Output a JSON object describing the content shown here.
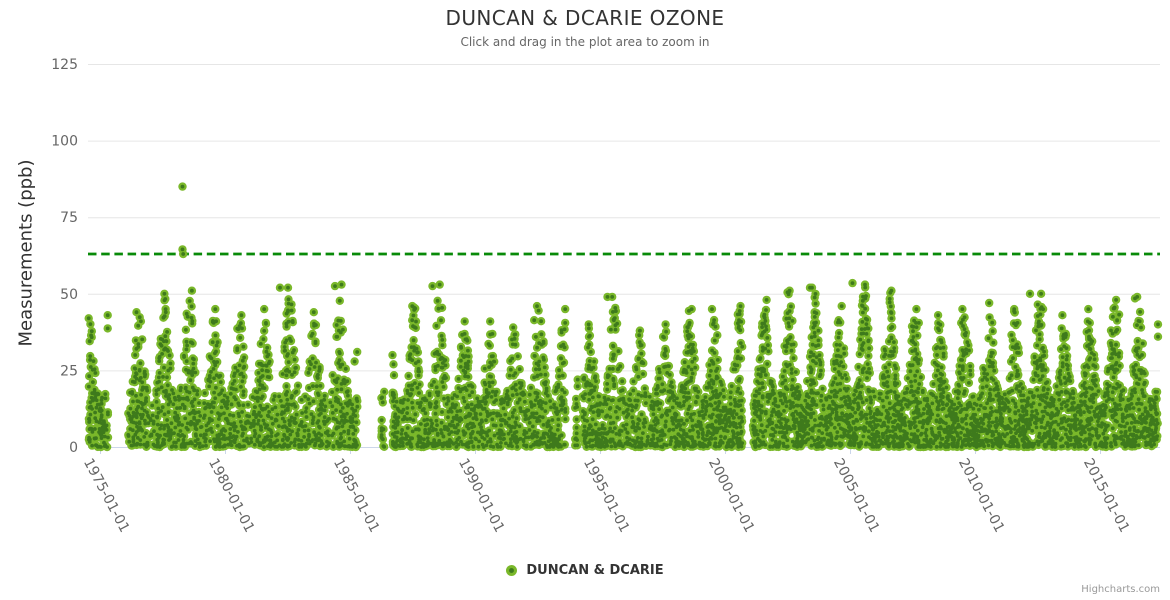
{
  "header": {
    "title": "DUNCAN & DCARIE OZONE",
    "subtitle": "Click and drag in the plot area to zoom in"
  },
  "legend": {
    "label": "DUNCAN & DCARIE"
  },
  "credits": {
    "label": "Highcharts.com"
  },
  "chart_data": {
    "type": "scatter",
    "title": "DUNCAN & DCARIE OZONE",
    "subtitle": "Click and drag in the plot area to zoom in",
    "ylabel": "Measurements (ppb)",
    "xlabel": "",
    "ylim": [
      0,
      125
    ],
    "y_ticks": [
      0,
      25,
      50,
      75,
      100,
      125
    ],
    "x_ticks": [
      {
        "year": 1975,
        "label": "1975-01-01"
      },
      {
        "year": 1980,
        "label": "1980-01-01"
      },
      {
        "year": 1985,
        "label": "1985-01-01"
      },
      {
        "year": 1990,
        "label": "1990-01-01"
      },
      {
        "year": 1995,
        "label": "1995-01-01"
      },
      {
        "year": 2000,
        "label": "2000-01-01"
      },
      {
        "year": 2005,
        "label": "2005-01-01"
      },
      {
        "year": 2010,
        "label": "2010-01-01"
      },
      {
        "year": 2015,
        "label": "2015-01-01"
      }
    ],
    "x_range_years": [
      1974.5,
      2017.4
    ],
    "grid": true,
    "legend_position": "bottom-center",
    "threshold_line": {
      "value": 63,
      "color": "#088a08",
      "dash_pattern": "8.5,4.7",
      "width": 2.8
    },
    "colors": {
      "series": "#7ab82a",
      "marker_center": "#3e7a1c",
      "grid": "#e6e6e6",
      "axis_line": "#ccd6eb",
      "tick_text": "#666666",
      "title_text": "#333333",
      "subtitle_text": "#666666",
      "threshold": "#088a08",
      "background": "#ffffff"
    },
    "series": [
      {
        "name": "DUNCAN & DCARIE",
        "color": "#7ab82a",
        "marker_center_color": "#3e7a1c",
        "marker_radius": 4.2,
        "seed": 1978,
        "day_slots": 40,
        "winter_base": 16,
        "peak_month_fraction": 0.58,
        "season_width": 0.23,
        "yearly_profile": [
          {
            "year": 1974,
            "max": 42,
            "n": 100,
            "segments": [
              [
                0.55,
                1.0
              ]
            ],
            "wd": 0.5
          },
          {
            "year": 1975,
            "max": 43,
            "n": 70,
            "segments": [
              [
                0.0,
                0.32
              ]
            ],
            "wd": 0.6
          },
          {
            "year": 1976,
            "max": 44,
            "n": 140,
            "segments": [
              [
                0.12,
                1.0
              ]
            ],
            "wd": 0.5
          },
          {
            "year": 1977,
            "max": 50,
            "n": 170,
            "segments": [
              [
                0,
                1
              ]
            ],
            "wd": 0.5
          },
          {
            "year": 1978,
            "max": 51,
            "n": 170,
            "segments": [
              [
                0,
                1
              ]
            ],
            "wd": 0.5
          },
          {
            "year": 1979,
            "max": 45,
            "n": 160,
            "segments": [
              [
                0,
                1
              ]
            ],
            "wd": 0.5
          },
          {
            "year": 1980,
            "max": 43,
            "n": 150,
            "segments": [
              [
                0,
                1
              ]
            ],
            "wd": 0.5
          },
          {
            "year": 1981,
            "max": 45,
            "n": 160,
            "segments": [
              [
                0,
                1
              ]
            ],
            "wd": 0.5
          },
          {
            "year": 1982,
            "max": 52,
            "n": 170,
            "segments": [
              [
                0,
                1
              ]
            ],
            "wd": 0.5
          },
          {
            "year": 1983,
            "max": 44,
            "n": 150,
            "segments": [
              [
                0,
                1
              ]
            ],
            "wd": 0.5
          },
          {
            "year": 1984,
            "max": 53,
            "n": 160,
            "segments": [
              [
                0,
                1
              ]
            ],
            "wd": 0.5
          },
          {
            "year": 1985,
            "max": 31,
            "n": 45,
            "segments": [
              [
                0,
                0.3
              ]
            ],
            "wd": 0.7
          },
          {
            "year": 1986,
            "max": 18,
            "n": 12,
            "segments": [
              [
                0.25,
                0.38
              ]
            ],
            "wd": 1.0
          },
          {
            "year": 1986,
            "max": 30,
            "n": 40,
            "segments": [
              [
                0.7,
                1.0
              ]
            ],
            "wd": 0.8
          },
          {
            "year": 1987,
            "max": 46,
            "n": 170,
            "segments": [
              [
                0,
                1
              ]
            ],
            "wd": 0.5
          },
          {
            "year": 1988,
            "max": 53,
            "n": 170,
            "segments": [
              [
                0,
                1
              ]
            ],
            "wd": 0.5
          },
          {
            "year": 1989,
            "max": 41,
            "n": 160,
            "segments": [
              [
                0,
                1
              ]
            ],
            "wd": 0.5
          },
          {
            "year": 1990,
            "max": 41,
            "n": 150,
            "segments": [
              [
                0,
                1
              ]
            ],
            "wd": 0.5
          },
          {
            "year": 1991,
            "max": 39,
            "n": 150,
            "segments": [
              [
                0,
                1
              ]
            ],
            "wd": 0.55
          },
          {
            "year": 1992,
            "max": 46,
            "n": 160,
            "segments": [
              [
                0,
                1
              ]
            ],
            "wd": 0.55
          },
          {
            "year": 1993,
            "max": 45,
            "n": 110,
            "segments": [
              [
                0,
                0.62
              ]
            ],
            "wd": 0.6
          },
          {
            "year": 1994,
            "max": 22,
            "n": 12,
            "segments": [
              [
                0.0,
                0.12
              ]
            ],
            "wd": 1.0
          },
          {
            "year": 1994,
            "max": 40,
            "n": 120,
            "segments": [
              [
                0.3,
                1.0
              ]
            ],
            "wd": 0.6
          },
          {
            "year": 1995,
            "max": 49,
            "n": 160,
            "segments": [
              [
                0,
                1
              ]
            ],
            "wd": 0.55
          },
          {
            "year": 1996,
            "max": 38,
            "n": 150,
            "segments": [
              [
                0,
                1
              ]
            ],
            "wd": 0.55
          },
          {
            "year": 1997,
            "max": 40,
            "n": 150,
            "segments": [
              [
                0,
                1
              ]
            ],
            "wd": 0.6
          },
          {
            "year": 1998,
            "max": 45,
            "n": 180,
            "segments": [
              [
                0,
                1
              ]
            ],
            "wd": 0.7
          },
          {
            "year": 1999,
            "max": 45,
            "n": 180,
            "segments": [
              [
                0,
                1
              ]
            ],
            "wd": 0.7
          },
          {
            "year": 2000,
            "max": 46,
            "n": 130,
            "segments": [
              [
                0,
                0.7
              ]
            ],
            "wd": 0.75
          },
          {
            "year": 2001,
            "max": 48,
            "n": 160,
            "segments": [
              [
                0.12,
                1
              ]
            ],
            "wd": 0.75
          },
          {
            "year": 2002,
            "max": 51,
            "n": 190,
            "segments": [
              [
                0,
                1
              ]
            ],
            "wd": 0.8
          },
          {
            "year": 2003,
            "max": 52,
            "n": 190,
            "segments": [
              [
                0,
                1
              ]
            ],
            "wd": 0.8
          },
          {
            "year": 2004,
            "max": 46,
            "n": 190,
            "segments": [
              [
                0,
                1
              ]
            ],
            "wd": 0.8
          },
          {
            "year": 2005,
            "max": 53,
            "n": 190,
            "segments": [
              [
                0,
                1
              ]
            ],
            "wd": 0.8
          },
          {
            "year": 2006,
            "max": 51,
            "n": 190,
            "segments": [
              [
                0,
                1
              ]
            ],
            "wd": 0.8
          },
          {
            "year": 2007,
            "max": 45,
            "n": 190,
            "segments": [
              [
                0,
                1
              ]
            ],
            "wd": 0.8
          },
          {
            "year": 2008,
            "max": 43,
            "n": 190,
            "segments": [
              [
                0,
                1
              ]
            ],
            "wd": 0.8
          },
          {
            "year": 2009,
            "max": 45,
            "n": 190,
            "segments": [
              [
                0,
                1
              ]
            ],
            "wd": 0.8
          },
          {
            "year": 2010,
            "max": 47,
            "n": 190,
            "segments": [
              [
                0,
                1
              ]
            ],
            "wd": 0.8
          },
          {
            "year": 2011,
            "max": 45,
            "n": 190,
            "segments": [
              [
                0,
                1
              ]
            ],
            "wd": 0.8
          },
          {
            "year": 2012,
            "max": 50,
            "n": 190,
            "segments": [
              [
                0,
                1
              ]
            ],
            "wd": 0.8
          },
          {
            "year": 2013,
            "max": 43,
            "n": 190,
            "segments": [
              [
                0,
                1
              ]
            ],
            "wd": 0.8
          },
          {
            "year": 2014,
            "max": 45,
            "n": 190,
            "segments": [
              [
                0,
                1
              ]
            ],
            "wd": 0.8
          },
          {
            "year": 2015,
            "max": 48,
            "n": 190,
            "segments": [
              [
                0,
                1
              ]
            ],
            "wd": 0.8
          },
          {
            "year": 2016,
            "max": 49,
            "n": 190,
            "segments": [
              [
                0,
                1
              ]
            ],
            "wd": 0.8
          },
          {
            "year": 2017,
            "max": 40,
            "n": 60,
            "segments": [
              [
                0,
                0.33
              ]
            ],
            "wd": 0.9
          }
        ],
        "notable_points": [
          {
            "x": 1978.3,
            "y": 85
          },
          {
            "x": 1978.3,
            "y": 64.5
          },
          {
            "x": 1978.33,
            "y": 63
          },
          {
            "x": 1982.2,
            "y": 52
          },
          {
            "x": 1984.4,
            "y": 52.5
          },
          {
            "x": 1988.3,
            "y": 52.5
          },
          {
            "x": 1995.3,
            "y": 49
          },
          {
            "x": 2002.5,
            "y": 50.5
          },
          {
            "x": 2003.4,
            "y": 52
          },
          {
            "x": 2005.1,
            "y": 53.5
          },
          {
            "x": 2012.2,
            "y": 50
          },
          {
            "x": 2016.4,
            "y": 48.5
          }
        ]
      }
    ]
  }
}
